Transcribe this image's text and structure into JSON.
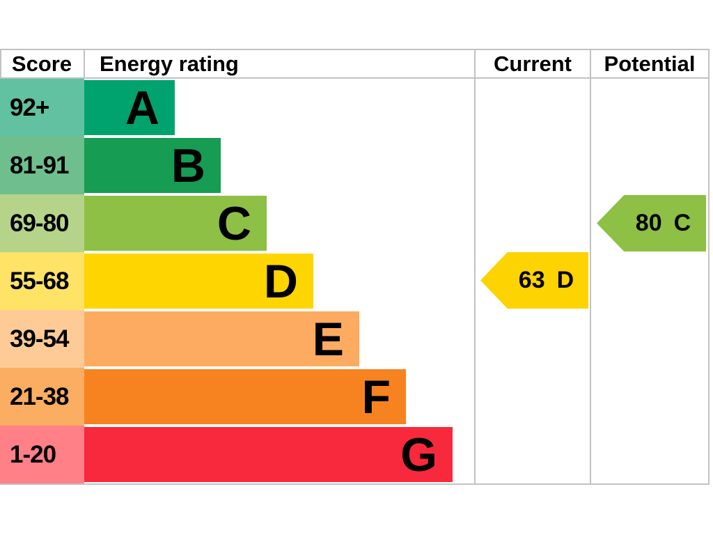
{
  "header": {
    "score": "Score",
    "energy_rating": "Energy rating",
    "current": "Current",
    "potential": "Potential"
  },
  "bands": [
    {
      "range": "92+",
      "letter": "A",
      "bar_color": "#00a36e",
      "score_cell_color": "#62c1a1"
    },
    {
      "range": "81-91",
      "letter": "B",
      "bar_color": "#169c53",
      "score_cell_color": "#6fbe8d"
    },
    {
      "range": "69-80",
      "letter": "C",
      "bar_color": "#8dc044",
      "score_cell_color": "#b5d48a"
    },
    {
      "range": "55-68",
      "letter": "D",
      "bar_color": "#fed500",
      "score_cell_color": "#ffe366"
    },
    {
      "range": "39-54",
      "letter": "E",
      "bar_color": "#fdab61",
      "score_cell_color": "#fecb97"
    },
    {
      "range": "21-38",
      "letter": "F",
      "bar_color": "#f78320",
      "score_cell_color": "#fbad61"
    },
    {
      "range": "1-20",
      "letter": "G",
      "bar_color": "#f8293c",
      "score_cell_color": "#ff8086"
    }
  ],
  "current": {
    "value": "63",
    "letter": "D",
    "color": "#fdd301"
  },
  "potential": {
    "value": "80",
    "letter": "C",
    "color": "#8dc044"
  },
  "chart_data": {
    "type": "bar",
    "title": "Energy performance certificate (EPC) rating chart",
    "columns": [
      "Score",
      "Energy rating",
      "Current",
      "Potential"
    ],
    "categories": [
      "A",
      "B",
      "C",
      "D",
      "E",
      "F",
      "G"
    ],
    "score_ranges": [
      "92+",
      "81-91",
      "69-80",
      "55-68",
      "39-54",
      "21-38",
      "1-20"
    ],
    "bar_lengths_relative": [
      1,
      2,
      3,
      4,
      5,
      6,
      7
    ],
    "bar_colors": [
      "#00a36e",
      "#169c53",
      "#8dc044",
      "#fed500",
      "#fdab61",
      "#f78320",
      "#f8293c"
    ],
    "current_rating": {
      "value": 63,
      "band": "D"
    },
    "potential_rating": {
      "value": 80,
      "band": "C"
    },
    "legend_position": "none",
    "grid": false
  }
}
